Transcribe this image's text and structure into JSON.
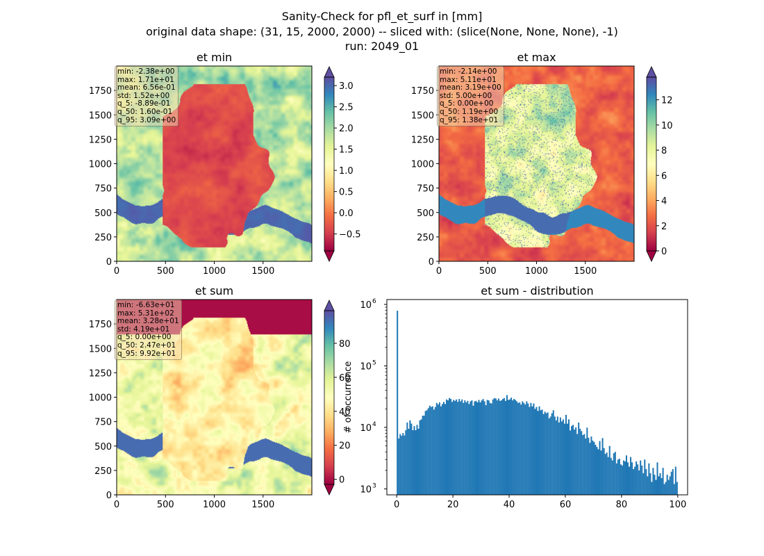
{
  "title": {
    "line1": "Sanity-Check for pfl_et_surf in [mm]",
    "line2": "original data shape: (31, 15, 2000, 2000) -- sliced with: (slice(None, None, None), -1)",
    "line3": "run: 2049_01"
  },
  "colors": {
    "colormap": "Spectral",
    "histogram_bar": "#1f77b4",
    "stats_box_bg": "#f5deb3"
  },
  "chart_data": [
    {
      "type": "heatmap",
      "title": "et min",
      "xlim": [
        0,
        2000
      ],
      "ylim": [
        0,
        2000
      ],
      "x_ticks": [
        "0",
        "500",
        "1000",
        "1500"
      ],
      "y_ticks": [
        "0",
        "250",
        "500",
        "750",
        "1000",
        "1250",
        "1500",
        "1750"
      ],
      "colorbar": {
        "vmin": -0.9,
        "vmax": 3.2,
        "extend": "both",
        "ticks": [
          "−0.5",
          "0.0",
          "0.5",
          "1.0",
          "1.5",
          "2.0",
          "2.5",
          "3.0"
        ],
        "tick_values": [
          -0.5,
          0.0,
          0.5,
          1.0,
          1.5,
          2.0,
          2.5,
          3.0
        ]
      },
      "stats": [
        "min: -2.38e+00",
        "max: 1.71e+01",
        "mean: 6.56e-01",
        "std: 1.52e+00",
        "q_5: -8.89e-01",
        "q_50: 1.60e-01",
        "q_95: 3.09e+00"
      ]
    },
    {
      "type": "heatmap",
      "title": "et max",
      "xlim": [
        0,
        2000
      ],
      "ylim": [
        0,
        2000
      ],
      "x_ticks": [
        "0",
        "500",
        "1000",
        "1500"
      ],
      "y_ticks": [
        "0",
        "250",
        "500",
        "750",
        "1000",
        "1250",
        "1500",
        "1750"
      ],
      "colorbar": {
        "vmin": 0,
        "vmax": 13.8,
        "extend": "both",
        "ticks": [
          "0",
          "2",
          "4",
          "6",
          "8",
          "10",
          "12"
        ],
        "tick_values": [
          0,
          2,
          4,
          6,
          8,
          10,
          12
        ]
      },
      "stats": [
        "min: -2.14e+00",
        "max: 5.11e+01",
        "mean: 3.19e+00",
        "std: 5.00e+00",
        "q_5: 0.00e+00",
        "q_50: 1.19e+00",
        "q_95: 1.38e+01"
      ]
    },
    {
      "type": "heatmap",
      "title": "et sum",
      "xlim": [
        0,
        2000
      ],
      "ylim": [
        0,
        2000
      ],
      "x_ticks": [
        "0",
        "500",
        "1000",
        "1500"
      ],
      "y_ticks": [
        "0",
        "250",
        "500",
        "750",
        "1000",
        "1250",
        "1500",
        "1750"
      ],
      "colorbar": {
        "vmin": -3,
        "vmax": 99.2,
        "extend": "both",
        "ticks": [
          "0",
          "20",
          "40",
          "60",
          "80"
        ],
        "tick_values": [
          0,
          20,
          40,
          60,
          80
        ]
      },
      "stats": [
        "min: -6.63e+01",
        "max: 5.31e+02",
        "mean: 3.28e+01",
        "std: 4.19e+01",
        "q_5: 0.00e+00",
        "q_50: 2.47e+01",
        "q_95: 9.92e+01"
      ]
    },
    {
      "type": "bar",
      "title": "et sum - distribution",
      "ylabel": "# of occurrence",
      "yscale": "log",
      "xlim": [
        -3.5,
        103.5
      ],
      "ylim": [
        800,
        1200000
      ],
      "x_ticks": [
        "0",
        "20",
        "40",
        "60",
        "80",
        "100"
      ],
      "x_tick_values": [
        0,
        20,
        40,
        60,
        80,
        100
      ],
      "y_ticks": [
        "10",
        "10",
        "10",
        "10"
      ],
      "y_tick_exponents": [
        "3",
        "4",
        "5",
        "6"
      ],
      "y_tick_values": [
        1000,
        10000,
        100000,
        1000000
      ],
      "bin_start": 0,
      "bin_width": 0.5,
      "values": [
        790000,
        6600,
        7800,
        7300,
        8100,
        7400,
        9000,
        12000,
        9500,
        13000,
        11500,
        9000,
        10500,
        9000,
        11000,
        9500,
        13000,
        13500,
        15500,
        15500,
        18500,
        19000,
        20500,
        22500,
        21500,
        22000,
        19500,
        21500,
        25000,
        23500,
        25500,
        22000,
        24000,
        26000,
        24000,
        28500,
        27500,
        30000,
        29000,
        26000,
        28000,
        27000,
        28500,
        26000,
        29000,
        26500,
        28500,
        25000,
        27500,
        25500,
        27000,
        24000,
        26500,
        27500,
        22500,
        26500,
        27000,
        25500,
        28000,
        25500,
        27500,
        29000,
        26500,
        23000,
        28000,
        27500,
        25000,
        24500,
        28500,
        30000,
        29500,
        27500,
        29500,
        27000,
        27500,
        29000,
        30000,
        27000,
        33500,
        28000,
        28500,
        30500,
        27500,
        29000,
        28000,
        26500,
        25000,
        25500,
        23500,
        26500,
        25000,
        23500,
        26500,
        24500,
        21500,
        25000,
        22000,
        24500,
        20000,
        21500,
        18500,
        22000,
        19000,
        19500,
        16500,
        18000,
        17000,
        17500,
        14000,
        15000,
        17000,
        19000,
        15000,
        13000,
        15000,
        12000,
        14500,
        12500,
        13500,
        11500,
        16000,
        11500,
        13500,
        8900,
        10500,
        11000,
        9200,
        10000,
        7800,
        12000,
        9500,
        8700,
        7500,
        7800,
        6600,
        9900,
        6800,
        5600,
        7100,
        6100,
        5800,
        5200,
        4800,
        4400,
        6000,
        4200,
        6700,
        4600,
        3700,
        3900,
        3300,
        5000,
        3200,
        2900,
        3800,
        4000,
        2600,
        3000,
        3100,
        2500,
        2400,
        2900,
        2800,
        3500,
        2700,
        2300,
        3300,
        2700,
        2100,
        2300,
        2800,
        2500,
        2000,
        2900,
        2400,
        1800,
        3000,
        2100,
        1600,
        2600,
        1800,
        1300,
        2200,
        1700,
        1400,
        2700,
        1600,
        1800,
        1500,
        2200,
        1200,
        1300,
        1700,
        1400,
        1600,
        1900,
        2100,
        1200,
        2300,
        1300
      ]
    }
  ]
}
